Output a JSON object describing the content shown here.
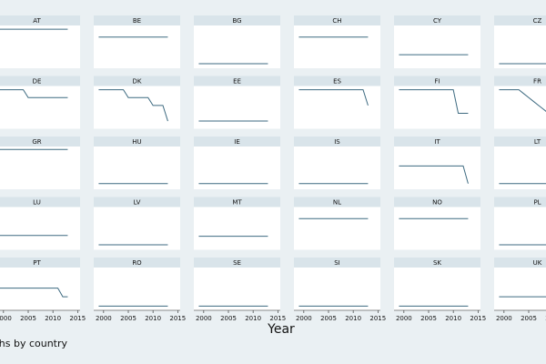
{
  "chart_data": {
    "type": "line",
    "x_title": "Year",
    "note": "Graphs by country",
    "x": [
      1999,
      2000,
      2001,
      2002,
      2003,
      2004,
      2005,
      2006,
      2007,
      2008,
      2009,
      2010,
      2011,
      2012,
      2013
    ],
    "xlim": [
      1998,
      2015.5
    ],
    "xticks": [
      2000,
      2005,
      2010,
      2015
    ],
    "ylim": [
      0,
      1
    ],
    "color": "#3d6a80",
    "panels": [
      {
        "title": "AT",
        "values": [
          0.95,
          0.95,
          0.95,
          0.95,
          0.95,
          0.95,
          0.95,
          0.95,
          0.95,
          0.95,
          0.95,
          0.95,
          0.95,
          0.95,
          0.95
        ]
      },
      {
        "title": "BE",
        "values": [
          0.75,
          0.75,
          0.75,
          0.75,
          0.75,
          0.75,
          0.75,
          0.75,
          0.75,
          0.75,
          0.75,
          0.75,
          0.75,
          0.75,
          0.75
        ]
      },
      {
        "title": "BG",
        "values": [
          0.07,
          0.07,
          0.07,
          0.07,
          0.07,
          0.07,
          0.07,
          0.07,
          0.07,
          0.07,
          0.07,
          0.07,
          0.07,
          0.07,
          0.07
        ]
      },
      {
        "title": "CH",
        "values": [
          0.75,
          0.75,
          0.75,
          0.75,
          0.75,
          0.75,
          0.75,
          0.75,
          0.75,
          0.75,
          0.75,
          0.75,
          0.75,
          0.75,
          0.75
        ]
      },
      {
        "title": "CY",
        "values": [
          0.3,
          0.3,
          0.3,
          0.3,
          0.3,
          0.3,
          0.3,
          0.3,
          0.3,
          0.3,
          0.3,
          0.3,
          0.3,
          0.3,
          0.3
        ]
      },
      {
        "title": "CZ",
        "values": [
          0.07,
          0.07,
          0.07,
          0.07,
          0.07,
          0.07,
          0.07,
          0.07,
          0.07,
          0.07,
          0.07,
          0.07,
          0.07,
          0.07,
          0.07
        ]
      },
      {
        "title": "DE",
        "values": [
          0.95,
          0.95,
          0.95,
          0.95,
          0.95,
          0.95,
          0.75,
          0.75,
          0.75,
          0.75,
          0.75,
          0.75,
          0.75,
          0.75,
          0.75
        ]
      },
      {
        "title": "DK",
        "values": [
          0.95,
          0.95,
          0.95,
          0.95,
          0.95,
          0.95,
          0.75,
          0.75,
          0.75,
          0.75,
          0.75,
          0.55,
          0.55,
          0.55,
          0.15
        ]
      },
      {
        "title": "EE",
        "values": [
          0.15,
          0.15,
          0.15,
          0.15,
          0.15,
          0.15,
          0.15,
          0.15,
          0.15,
          0.15,
          0.15,
          0.15,
          0.15,
          0.15,
          0.15
        ]
      },
      {
        "title": "ES",
        "values": [
          0.95,
          0.95,
          0.95,
          0.95,
          0.95,
          0.95,
          0.95,
          0.95,
          0.95,
          0.95,
          0.95,
          0.95,
          0.95,
          0.95,
          0.55
        ]
      },
      {
        "title": "FI",
        "values": [
          0.95,
          0.95,
          0.95,
          0.95,
          0.95,
          0.95,
          0.95,
          0.95,
          0.95,
          0.95,
          0.95,
          0.95,
          0.35,
          0.35,
          0.35
        ]
      },
      {
        "title": "FR",
        "values": [
          0.95,
          0.95,
          0.95,
          0.95,
          0.95,
          0.85,
          0.75,
          0.65,
          0.55,
          0.45,
          0.35,
          0.3,
          0.3,
          0.3,
          0.3
        ]
      },
      {
        "title": "GR",
        "values": [
          0.97,
          0.97,
          0.97,
          0.97,
          0.97,
          0.97,
          0.97,
          0.97,
          0.97,
          0.97,
          0.97,
          0.97,
          0.97,
          0.97,
          0.97
        ]
      },
      {
        "title": "HU",
        "values": [
          0.1,
          0.1,
          0.1,
          0.1,
          0.1,
          0.1,
          0.1,
          0.1,
          0.1,
          0.1,
          0.1,
          0.1,
          0.1,
          0.1,
          0.1
        ]
      },
      {
        "title": "IE",
        "values": [
          0.1,
          0.1,
          0.1,
          0.1,
          0.1,
          0.1,
          0.1,
          0.1,
          0.1,
          0.1,
          0.1,
          0.1,
          0.1,
          0.1,
          0.1
        ]
      },
      {
        "title": "IS",
        "values": [
          0.1,
          0.1,
          0.1,
          0.1,
          0.1,
          0.1,
          0.1,
          0.1,
          0.1,
          0.1,
          0.1,
          0.1,
          0.1,
          0.1,
          0.1
        ]
      },
      {
        "title": "IT",
        "values": [
          0.55,
          0.55,
          0.55,
          0.55,
          0.55,
          0.55,
          0.55,
          0.55,
          0.55,
          0.55,
          0.55,
          0.55,
          0.55,
          0.55,
          0.1
        ]
      },
      {
        "title": "LT",
        "values": [
          0.1,
          0.1,
          0.1,
          0.1,
          0.1,
          0.1,
          0.1,
          0.1,
          0.1,
          0.1,
          0.1,
          0.1,
          0.1,
          0.1,
          0.1
        ]
      },
      {
        "title": "LU",
        "values": [
          0.32,
          0.32,
          0.32,
          0.32,
          0.32,
          0.32,
          0.32,
          0.32,
          0.32,
          0.32,
          0.32,
          0.32,
          0.32,
          0.32,
          0.32
        ]
      },
      {
        "title": "LV",
        "values": [
          0.08,
          0.08,
          0.08,
          0.08,
          0.08,
          0.08,
          0.08,
          0.08,
          0.08,
          0.08,
          0.08,
          0.08,
          0.08,
          0.08,
          0.08
        ]
      },
      {
        "title": "MT",
        "values": [
          0.3,
          0.3,
          0.3,
          0.3,
          0.3,
          0.3,
          0.3,
          0.3,
          0.3,
          0.3,
          0.3,
          0.3,
          0.3,
          0.3,
          0.3
        ]
      },
      {
        "title": "NL",
        "values": [
          0.75,
          0.75,
          0.75,
          0.75,
          0.75,
          0.75,
          0.75,
          0.75,
          0.75,
          0.75,
          0.75,
          0.75,
          0.75,
          0.75,
          0.75
        ]
      },
      {
        "title": "NO",
        "values": [
          0.75,
          0.75,
          0.75,
          0.75,
          0.75,
          0.75,
          0.75,
          0.75,
          0.75,
          0.75,
          0.75,
          0.75,
          0.75,
          0.75,
          0.75
        ]
      },
      {
        "title": "PL",
        "values": [
          0.08,
          0.08,
          0.08,
          0.08,
          0.08,
          0.08,
          0.08,
          0.08,
          0.08,
          0.08,
          0.08,
          0.08,
          0.08,
          0.08,
          0.08
        ]
      },
      {
        "title": "PT",
        "values": [
          0.52,
          0.52,
          0.52,
          0.52,
          0.52,
          0.52,
          0.52,
          0.52,
          0.52,
          0.52,
          0.52,
          0.52,
          0.52,
          0.3,
          0.3
        ]
      },
      {
        "title": "RO",
        "values": [
          0.06,
          0.06,
          0.06,
          0.06,
          0.06,
          0.06,
          0.06,
          0.06,
          0.06,
          0.06,
          0.06,
          0.06,
          0.06,
          0.06,
          0.06
        ]
      },
      {
        "title": "SE",
        "values": [
          0.06,
          0.06,
          0.06,
          0.06,
          0.06,
          0.06,
          0.06,
          0.06,
          0.06,
          0.06,
          0.06,
          0.06,
          0.06,
          0.06,
          0.06
        ]
      },
      {
        "title": "SI",
        "values": [
          0.06,
          0.06,
          0.06,
          0.06,
          0.06,
          0.06,
          0.06,
          0.06,
          0.06,
          0.06,
          0.06,
          0.06,
          0.06,
          0.06,
          0.06
        ]
      },
      {
        "title": "SK",
        "values": [
          0.06,
          0.06,
          0.06,
          0.06,
          0.06,
          0.06,
          0.06,
          0.06,
          0.06,
          0.06,
          0.06,
          0.06,
          0.06,
          0.06,
          0.06
        ]
      },
      {
        "title": "UK",
        "values": [
          0.3,
          0.3,
          0.3,
          0.3,
          0.3,
          0.3,
          0.3,
          0.3,
          0.3,
          0.3,
          0.3,
          0.3,
          0.3,
          0.3,
          0.3
        ]
      }
    ]
  }
}
